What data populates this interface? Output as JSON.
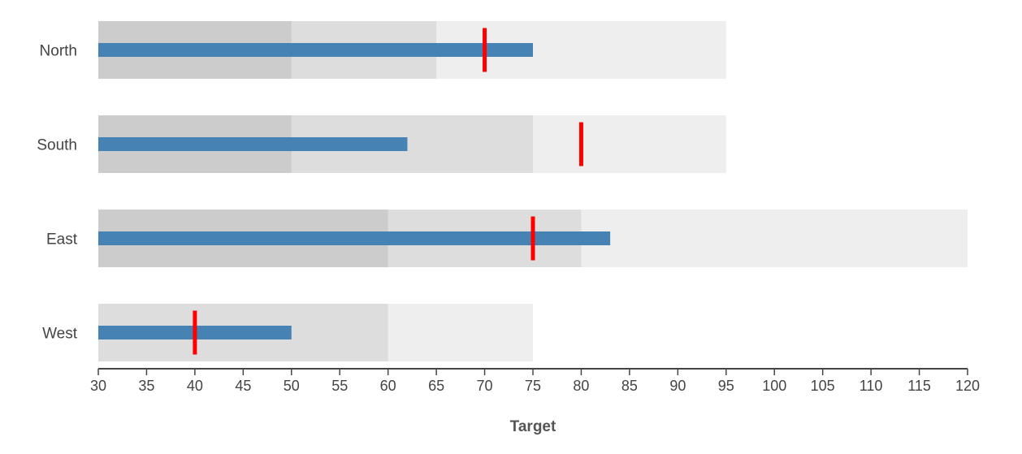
{
  "chart_data": {
    "type": "bullet",
    "xlabel": "Target",
    "xlim": [
      30,
      120
    ],
    "xticks": [
      30,
      35,
      40,
      45,
      50,
      55,
      60,
      65,
      70,
      75,
      80,
      85,
      90,
      95,
      100,
      105,
      110,
      115,
      120
    ],
    "categories": [
      "North",
      "South",
      "East",
      "West"
    ],
    "series": [
      {
        "category": "North",
        "ranges": [
          50,
          65,
          95
        ],
        "value": 75,
        "target": 70
      },
      {
        "category": "South",
        "ranges": [
          50,
          75,
          95
        ],
        "value": 62,
        "target": 80
      },
      {
        "category": "East",
        "ranges": [
          60,
          80,
          120
        ],
        "value": 83,
        "target": 75
      },
      {
        "category": "West",
        "ranges": [
          60,
          75
        ],
        "value": 50,
        "target": 40
      }
    ],
    "colors": {
      "range_dark": "#cccccc",
      "range_mid": "#dddddd",
      "range_light": "#eeeeee",
      "bar": "#4682b4",
      "target": "#ff0000",
      "axis": "#444444"
    }
  }
}
